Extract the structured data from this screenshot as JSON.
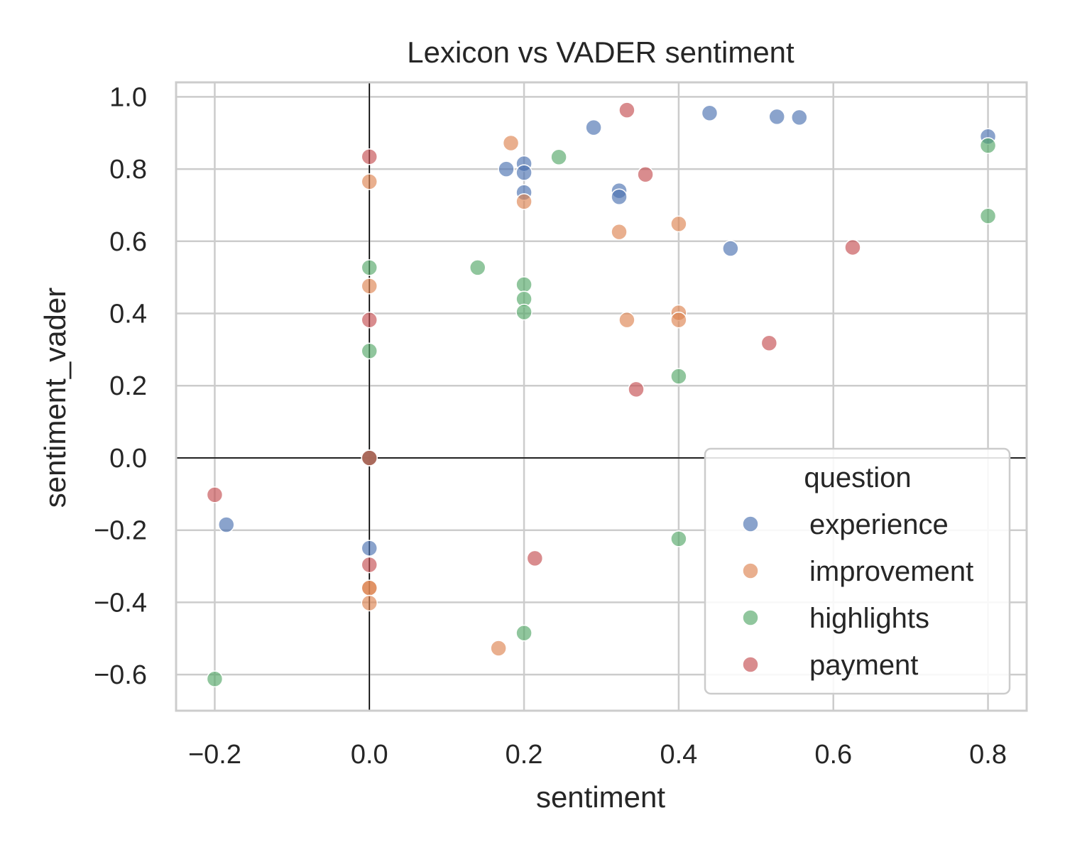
{
  "chart_data": {
    "type": "scatter",
    "title": "Lexicon vs VADER sentiment",
    "xlabel": "sentiment",
    "ylabel": "sentiment_vader",
    "xlim": [
      -0.25,
      0.85
    ],
    "ylim": [
      -0.7,
      1.04
    ],
    "xticks": [
      -0.2,
      0.0,
      0.2,
      0.4,
      0.6,
      0.8
    ],
    "xtick_labels": [
      "−0.2",
      "0.0",
      "0.2",
      "0.4",
      "0.6",
      "0.8"
    ],
    "yticks": [
      -0.6,
      -0.4,
      -0.2,
      0.0,
      0.2,
      0.4,
      0.6,
      0.8,
      1.0
    ],
    "ytick_labels": [
      "−0.6",
      "−0.4",
      "−0.2",
      "0.0",
      "0.2",
      "0.4",
      "0.6",
      "0.8",
      "1.0"
    ],
    "grid": true,
    "reference_lines": {
      "x": 0.0,
      "y": 0.0
    },
    "legend": {
      "title": "question",
      "placement": "lower-right"
    },
    "series": [
      {
        "name": "experience",
        "color": "#4C72B0",
        "points": [
          [
            0.8,
            0.89
          ],
          [
            0.44,
            0.955
          ],
          [
            0.527,
            0.945
          ],
          [
            0.556,
            0.943
          ],
          [
            0.29,
            0.915
          ],
          [
            0.2,
            0.815
          ],
          [
            0.177,
            0.8
          ],
          [
            0.2,
            0.79
          ],
          [
            0.2,
            0.735
          ],
          [
            0.323,
            0.74
          ],
          [
            0.323,
            0.723
          ],
          [
            0.467,
            0.58
          ],
          [
            -0.185,
            -0.185
          ],
          [
            0.0,
            -0.25
          ],
          [
            0.0,
            0.0
          ]
        ]
      },
      {
        "name": "improvement",
        "color": "#DD8452",
        "points": [
          [
            0.183,
            0.872
          ],
          [
            0.0,
            0.765
          ],
          [
            0.2,
            0.71
          ],
          [
            0.4,
            0.648
          ],
          [
            0.323,
            0.626
          ],
          [
            0.0,
            0.476
          ],
          [
            0.4,
            0.402
          ],
          [
            0.4,
            0.382
          ],
          [
            0.333,
            0.382
          ],
          [
            0.0,
            -0.36
          ],
          [
            0.0,
            -0.36
          ],
          [
            0.0,
            -0.402
          ],
          [
            0.167,
            -0.527
          ],
          [
            0.0,
            0.0
          ]
        ]
      },
      {
        "name": "highlights",
        "color": "#55A868",
        "points": [
          [
            0.8,
            0.865
          ],
          [
            0.8,
            0.67
          ],
          [
            0.245,
            0.833
          ],
          [
            0.14,
            0.527
          ],
          [
            0.0,
            0.527
          ],
          [
            0.2,
            0.48
          ],
          [
            0.2,
            0.44
          ],
          [
            0.2,
            0.404
          ],
          [
            0.0,
            0.296
          ],
          [
            0.4,
            0.226
          ],
          [
            0.4,
            -0.224
          ],
          [
            0.2,
            -0.485
          ],
          [
            -0.2,
            -0.612
          ],
          [
            0.0,
            0.0
          ]
        ]
      },
      {
        "name": "payment",
        "color": "#C44E52",
        "points": [
          [
            0.333,
            0.963
          ],
          [
            0.0,
            0.834
          ],
          [
            0.357,
            0.785
          ],
          [
            0.625,
            0.583
          ],
          [
            0.0,
            0.382
          ],
          [
            0.517,
            0.318
          ],
          [
            0.345,
            0.19
          ],
          [
            0.0,
            0.0
          ],
          [
            -0.2,
            -0.102
          ],
          [
            0.0,
            -0.296
          ],
          [
            0.214,
            -0.278
          ]
        ]
      }
    ]
  }
}
